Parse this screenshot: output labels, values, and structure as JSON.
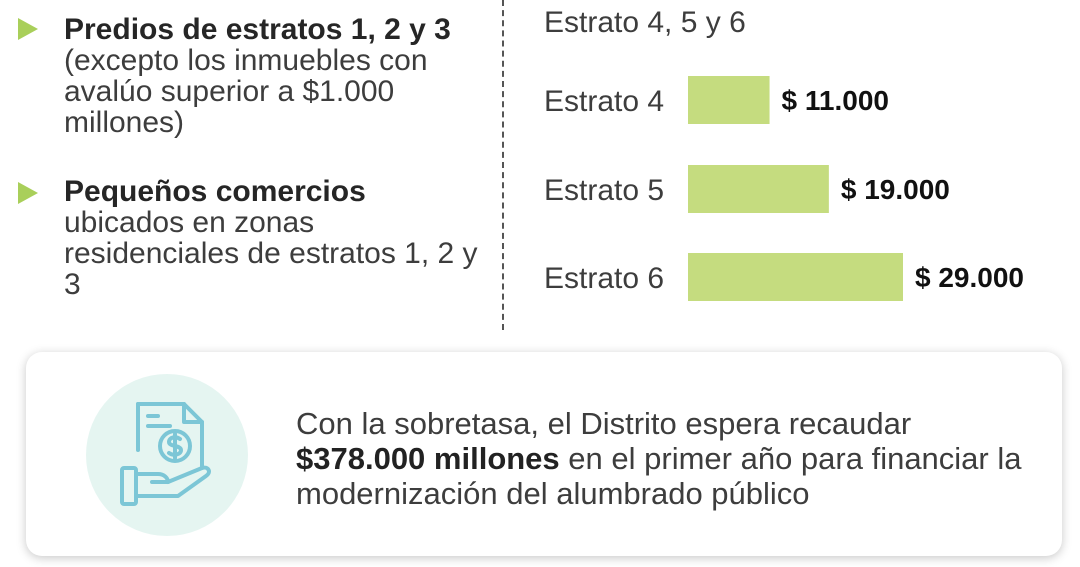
{
  "colors": {
    "bar": "#c5dc7f",
    "bullet": "#a9cf5a",
    "icon": "#7cc6d6",
    "icon_bg": "#e5f5f1"
  },
  "left_list": [
    {
      "head": "Predios de estratos 1, 2 y 3",
      "rest": "(excepto los inmuebles con avalúo superior a $1.000 millones)"
    },
    {
      "head": "Pequeños comercios",
      "rest": "ubicados en zonas residenciales de estratos 1, 2 y 3"
    }
  ],
  "chart_data": {
    "type": "bar",
    "orientation": "horizontal",
    "title": "Estrato 4, 5 y 6",
    "categories": [
      "Estrato 4",
      "Estrato 5",
      "Estrato 6"
    ],
    "values": [
      11000,
      19000,
      29000
    ],
    "value_labels": [
      "$ 11.000",
      "$ 19.000",
      "$ 29.000"
    ],
    "grid": false
  },
  "panel": {
    "icon": "money-document-hand-icon",
    "text_before": "Con la sobretasa, el Distrito espera recaudar",
    "text_bold": "$378.000 millones",
    "text_after": "en el primer año para financiar la modernización del alumbrado público"
  }
}
